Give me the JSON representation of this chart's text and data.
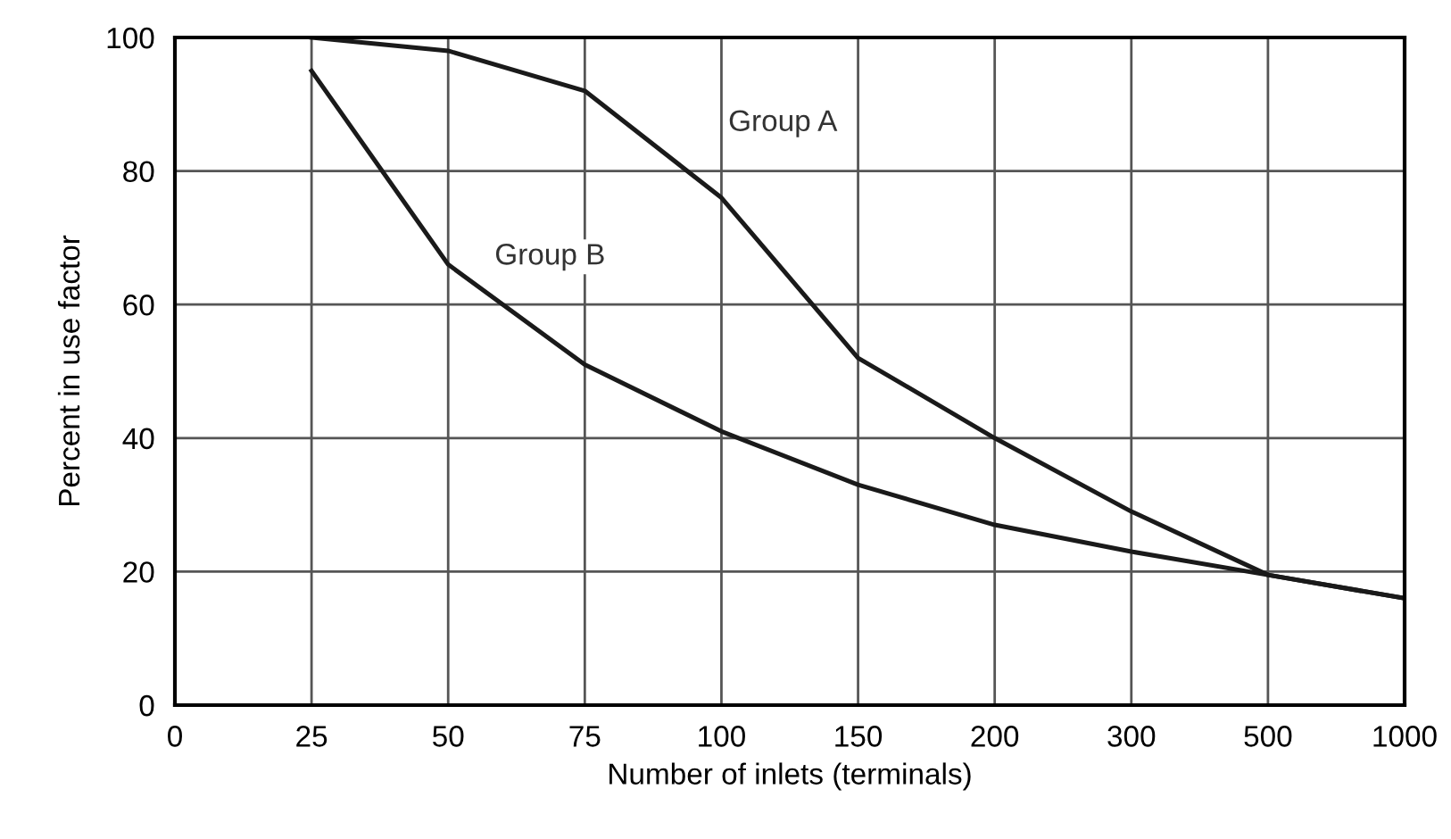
{
  "chart_data": {
    "type": "line",
    "xlabel": "Number of inlets (terminals)",
    "ylabel": "Percent in use factor",
    "categories": [
      "0",
      "25",
      "50",
      "75",
      "100",
      "150",
      "200",
      "300",
      "500",
      "1000"
    ],
    "series": [
      {
        "name": "Group A",
        "color": "#1a1a1a",
        "values": [
          null,
          100,
          98,
          92,
          76,
          52,
          40,
          29,
          19.5,
          16
        ]
      },
      {
        "name": "Group B",
        "color": "#1a1a1a",
        "values": [
          null,
          95,
          66,
          51,
          41,
          33,
          27,
          23,
          19.5,
          16
        ]
      }
    ],
    "ylim": [
      0,
      100
    ],
    "yticks": [
      0,
      20,
      40,
      60,
      80,
      100
    ],
    "grid": true,
    "line_style": "solid"
  }
}
